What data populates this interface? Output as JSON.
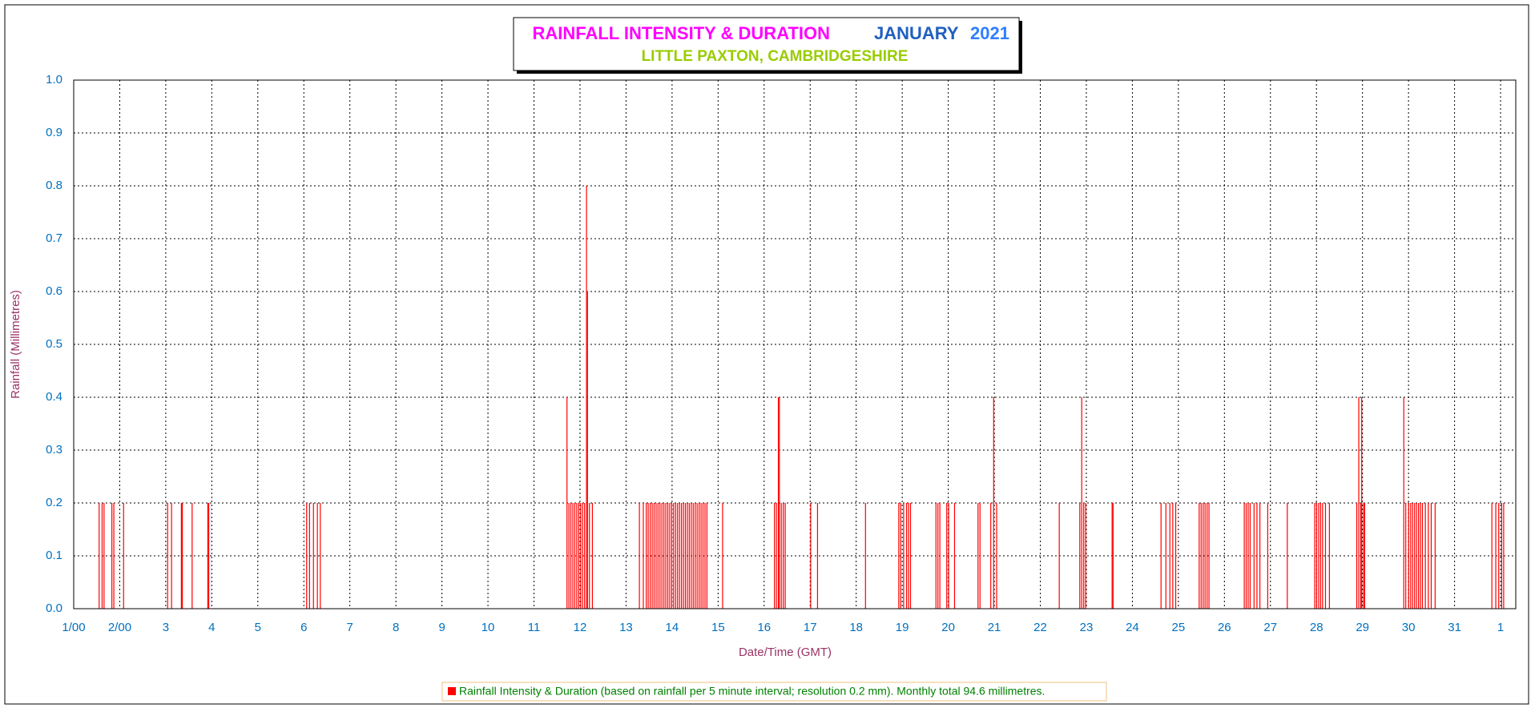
{
  "chart_data": {
    "type": "spike",
    "title": "RAINFALL INTENSITY & DURATION",
    "title_month": "JANUARY",
    "title_year": "2021",
    "subtitle": "LITTLE PAXTON, CAMBRIDGESHIRE",
    "x_label": "Date/Time (GMT)",
    "y_label": "Rainfall (Millimetres)",
    "xlim": [
      1,
      32.33
    ],
    "ylim": [
      0,
      1
    ],
    "xticks": [
      {
        "value": 1,
        "label": "1/00"
      },
      {
        "value": 2,
        "label": "2/00"
      },
      3,
      4,
      5,
      6,
      7,
      8,
      9,
      10,
      11,
      12,
      13,
      14,
      15,
      16,
      17,
      18,
      19,
      20,
      21,
      22,
      23,
      24,
      25,
      26,
      27,
      28,
      29,
      30,
      31,
      {
        "value": 32,
        "label": "1"
      }
    ],
    "yticks": [
      {
        "value": 0,
        "label": "0.0"
      },
      0.1,
      0.2,
      0.3,
      0.4,
      0.5,
      0.6,
      0.7,
      0.8,
      0.9,
      {
        "value": 1,
        "label": "1.0"
      }
    ],
    "grid": true,
    "legend": "bottom",
    "series": [
      {
        "name": "Rainfall Intensity & Duration (based on rainfall per 5 minute interval; resolution 0.2 mm). Monthly total 94.6 millimetres.",
        "color": "#ff0000",
        "x": [
          1.553,
          1.617,
          1.659,
          1.829,
          1.872,
          2.084,
          3.041,
          3.126,
          3.339,
          3.36,
          3.573,
          3.913,
          3.934,
          6.061,
          6.124,
          6.209,
          6.294,
          6.358,
          11.717,
          11.759,
          11.801,
          11.844,
          11.886,
          11.929,
          11.971,
          12.014,
          12.056,
          12.099,
          12.141,
          12.163,
          12.205,
          12.269,
          13.29,
          13.375,
          13.439,
          13.481,
          13.524,
          13.567,
          13.609,
          13.652,
          13.694,
          13.737,
          13.779,
          13.822,
          13.864,
          13.907,
          13.949,
          13.992,
          14.034,
          14.077,
          14.119,
          14.162,
          14.204,
          14.247,
          14.289,
          14.332,
          14.374,
          14.417,
          14.46,
          14.502,
          14.545,
          14.587,
          14.63,
          14.672,
          14.715,
          14.757,
          15.098,
          16.224,
          16.267,
          16.309,
          16.331,
          16.373,
          16.416,
          16.458,
          17.011,
          17.16,
          18.202,
          18.925,
          18.967,
          19.031,
          19.094,
          19.137,
          19.18,
          19.733,
          19.775,
          19.818,
          19.967,
          20.009,
          20.137,
          20.647,
          20.69,
          20.924,
          20.987,
          21.051,
          22.412,
          22.858,
          22.9,
          22.943,
          22.985,
          23.56,
          23.581,
          24.623,
          24.729,
          24.815,
          24.878,
          24.942,
          25.452,
          25.495,
          25.538,
          25.58,
          25.623,
          25.665,
          26.431,
          26.473,
          26.516,
          26.559,
          26.644,
          26.707,
          26.771,
          26.941,
          27.366,
          27.962,
          28.004,
          28.047,
          28.089,
          28.132,
          28.196,
          28.281,
          28.876,
          28.919,
          28.961,
          28.983,
          29.025,
          29.047,
          29.897,
          29.94,
          30.004,
          30.047,
          30.089,
          30.132,
          30.174,
          30.217,
          30.259,
          30.302,
          30.366,
          30.43,
          30.493,
          30.578,
          31.811,
          31.896,
          31.96,
          32.024,
          32.067
        ],
        "values": [
          0.2,
          0.2,
          0.2,
          0.2,
          0.2,
          0.2,
          0.2,
          0.2,
          0.2,
          0.2,
          0.2,
          0.2,
          0.2,
          0.2,
          0.2,
          0.2,
          0.2,
          0.2,
          0.4,
          0.2,
          0.2,
          0.2,
          0.2,
          0.2,
          0.2,
          0.2,
          0.2,
          0.2,
          0.8,
          0.6,
          0.2,
          0.2,
          0.2,
          0.2,
          0.2,
          0.2,
          0.2,
          0.2,
          0.2,
          0.2,
          0.2,
          0.2,
          0.2,
          0.2,
          0.2,
          0.2,
          0.2,
          0.2,
          0.2,
          0.2,
          0.2,
          0.2,
          0.2,
          0.2,
          0.2,
          0.2,
          0.2,
          0.2,
          0.2,
          0.2,
          0.2,
          0.2,
          0.2,
          0.2,
          0.2,
          0.2,
          0.2,
          0.2,
          0.2,
          0.4,
          0.4,
          0.2,
          0.2,
          0.2,
          0.2,
          0.2,
          0.2,
          0.2,
          0.2,
          0.2,
          0.2,
          0.2,
          0.2,
          0.2,
          0.2,
          0.2,
          0.2,
          0.2,
          0.2,
          0.2,
          0.2,
          0.2,
          0.4,
          0.2,
          0.2,
          0.2,
          0.4,
          0.2,
          0.2,
          0.2,
          0.2,
          0.2,
          0.2,
          0.2,
          0.2,
          0.2,
          0.2,
          0.2,
          0.2,
          0.2,
          0.2,
          0.2,
          0.2,
          0.2,
          0.2,
          0.2,
          0.2,
          0.2,
          0.2,
          0.2,
          0.2,
          0.2,
          0.2,
          0.2,
          0.2,
          0.2,
          0.2,
          0.2,
          0.2,
          0.4,
          0.2,
          0.4,
          0.2,
          0.2,
          0.4,
          0.2,
          0.2,
          0.2,
          0.2,
          0.2,
          0.2,
          0.2,
          0.2,
          0.2,
          0.2,
          0.2,
          0.2,
          0.2,
          0.2,
          0.2,
          0.2,
          0.2,
          0.2
        ]
      }
    ]
  }
}
